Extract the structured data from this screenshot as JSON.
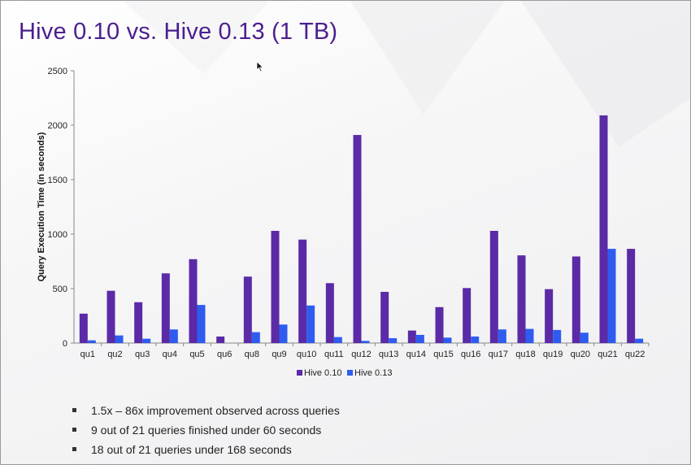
{
  "slide": {
    "title": "Hive 0.10 vs. Hive 0.13 (1 TB)",
    "bullets": [
      "1.5x – 86x improvement observed across queries",
      "9 out of 21 queries finished under 60 seconds",
      "18 out of 21 queries under 168 seconds"
    ]
  },
  "chart_data": {
    "type": "bar",
    "title": "",
    "xlabel": "",
    "ylabel": "Query Execution Time (in seconds)",
    "ylim": [
      0,
      2500
    ],
    "yticks": [
      0,
      500,
      1000,
      1500,
      2000,
      2500
    ],
    "grid": false,
    "legend_position": "bottom",
    "categories": [
      "qu1",
      "qu2",
      "qu3",
      "qu4",
      "qu5",
      "qu6",
      "qu8",
      "qu9",
      "qu10",
      "qu11",
      "qu12",
      "qu13",
      "qu14",
      "qu15",
      "qu16",
      "qu17",
      "qu18",
      "qu19",
      "qu20",
      "qu21",
      "qu22"
    ],
    "series": [
      {
        "name": "Hive 0.10",
        "color": "#5b2aa6",
        "values": [
          270,
          480,
          375,
          640,
          770,
          60,
          610,
          1030,
          950,
          550,
          1910,
          470,
          115,
          330,
          505,
          1030,
          805,
          495,
          795,
          2090,
          865
        ]
      },
      {
        "name": "Hive 0.13",
        "color": "#2f5cf0",
        "values": [
          25,
          70,
          40,
          125,
          350,
          0,
          100,
          170,
          345,
          55,
          20,
          45,
          75,
          50,
          60,
          125,
          130,
          120,
          95,
          865,
          40
        ]
      }
    ]
  }
}
